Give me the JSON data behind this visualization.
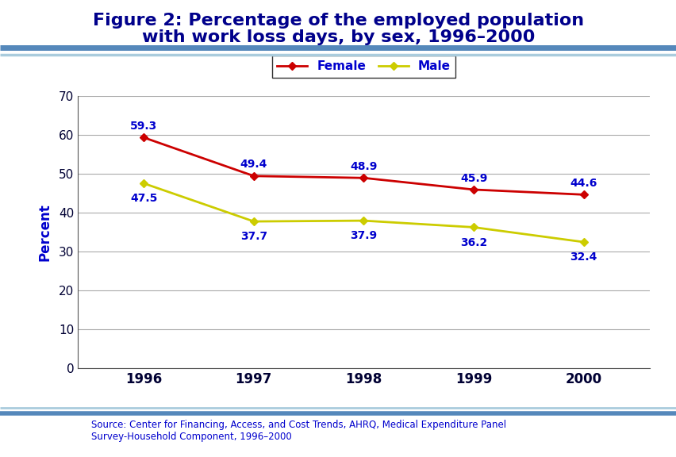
{
  "title_line1": "Figure 2: Percentage of the employed population",
  "title_line2": "with work loss days, by sex, 1996–2000",
  "title_color": "#00008B",
  "title_fontsize": 16,
  "ylabel": "Percent",
  "ylabel_color": "#0000CD",
  "ylabel_fontsize": 12,
  "years": [
    1996,
    1997,
    1998,
    1999,
    2000
  ],
  "female_values": [
    59.3,
    49.4,
    48.9,
    45.9,
    44.6
  ],
  "male_values": [
    47.5,
    37.7,
    37.9,
    36.2,
    32.4
  ],
  "female_color": "#CC0000",
  "male_color": "#CCCC00",
  "label_color": "#0000CD",
  "label_fontsize": 10,
  "ylim": [
    0,
    70
  ],
  "yticks": [
    0,
    10,
    20,
    30,
    40,
    50,
    60,
    70
  ],
  "grid_color": "#aaaaaa",
  "background_color": "#FFFFFF",
  "legend_labels": [
    "Female",
    "Male"
  ],
  "legend_fontsize": 11,
  "source_text": "Source: Center for Financing, Access, and Cost Trends, AHRQ, Medical Expenditure Panel\nSurvey-Household Component, 1996–2000",
  "source_color": "#0000CD",
  "source_fontsize": 8.5,
  "header_thick_color": "#5588BB",
  "header_thin_color": "#AACCDD",
  "border_color": "#5588BB",
  "xtick_fontsize": 12,
  "ytick_fontsize": 11
}
